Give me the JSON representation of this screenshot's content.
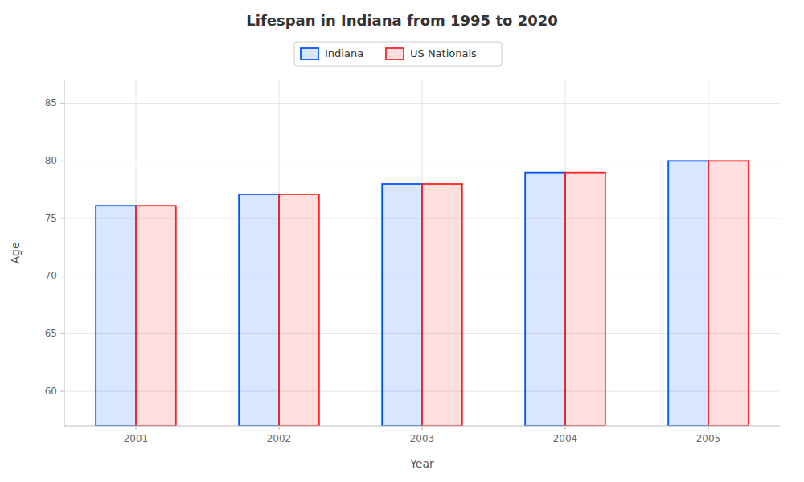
{
  "chart_data": {
    "type": "bar",
    "title": "Lifespan in Indiana from 1995 to 2020",
    "xlabel": "Year",
    "ylabel": "Age",
    "categories": [
      "2001",
      "2002",
      "2003",
      "2004",
      "2005"
    ],
    "series": [
      {
        "name": "Indiana",
        "color": "#0055ff",
        "values": [
          76.1,
          77.1,
          78.0,
          79.0,
          80.0
        ]
      },
      {
        "name": "US Nationals",
        "color": "#ff2222",
        "values": [
          76.1,
          77.1,
          78.0,
          79.0,
          80.0
        ]
      }
    ],
    "ylim": [
      57,
      87
    ],
    "yticks": [
      60,
      65,
      70,
      75,
      80,
      85
    ],
    "grid": true,
    "legend": "top"
  }
}
